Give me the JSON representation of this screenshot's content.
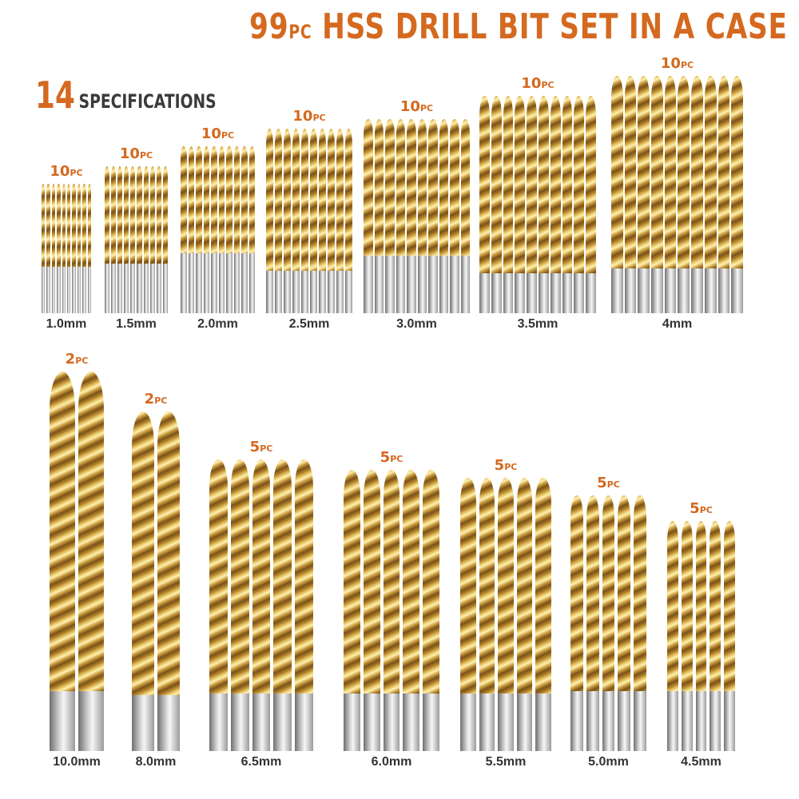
{
  "header": {
    "title_num": "99",
    "title_pc": "PC",
    "title_rest": " HSS DRILL BIT SET IN A CASE"
  },
  "specs": {
    "count": "14",
    "label": "SPECIFICATIONS"
  },
  "pc_suffix": "PC",
  "groups": [
    {
      "count": "10",
      "size": "1.0mm"
    },
    {
      "count": "10",
      "size": "1.5mm"
    },
    {
      "count": "10",
      "size": "2.0mm"
    },
    {
      "count": "10",
      "size": "2.5mm"
    },
    {
      "count": "10",
      "size": "3.0mm"
    },
    {
      "count": "10",
      "size": "3.5mm"
    },
    {
      "count": "10",
      "size": "4mm"
    },
    {
      "count": "2",
      "size": "10.0mm"
    },
    {
      "count": "2",
      "size": "8.0mm"
    },
    {
      "count": "5",
      "size": "6.5mm"
    },
    {
      "count": "5",
      "size": "6.0mm"
    },
    {
      "count": "5",
      "size": "5.5mm"
    },
    {
      "count": "5",
      "size": "5.0mm"
    },
    {
      "count": "5",
      "size": "4.5mm"
    }
  ],
  "colors": {
    "accent": "#d4691f",
    "label": "#333333",
    "gold": "#c9a14a",
    "steel": "#b5b5b5"
  }
}
